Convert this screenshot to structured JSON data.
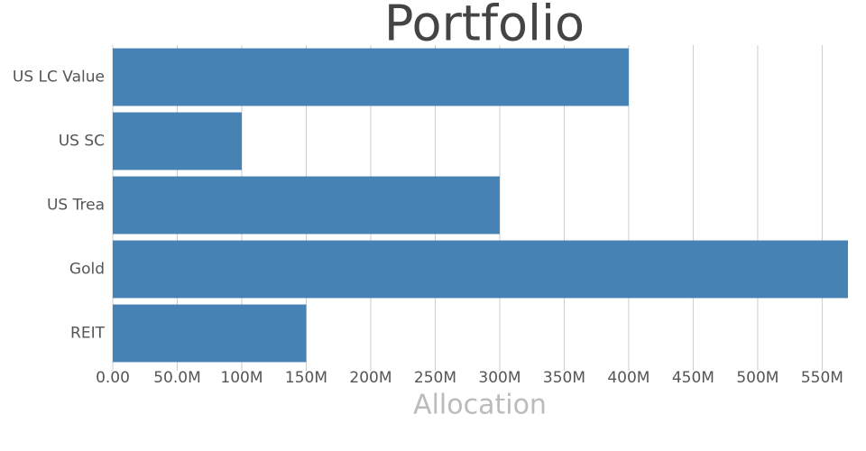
{
  "chart_data": {
    "type": "hbar",
    "title": "Portfolio",
    "x_label": "Allocation",
    "categories": [
      "US LC Value",
      "US SC",
      "US Trea",
      "Gold",
      "REIT"
    ],
    "values": [
      400000000,
      100000000,
      300000000,
      570000000,
      150000000
    ],
    "color": "#4682b4",
    "xlim": [
      0,
      570000000
    ],
    "xticks": [
      {
        "value": 0,
        "label": "0.00"
      },
      {
        "value": 50000000,
        "label": "50.0M"
      },
      {
        "value": 100000000,
        "label": "100M"
      },
      {
        "value": 150000000,
        "label": "150M"
      },
      {
        "value": 200000000,
        "label": "200M"
      },
      {
        "value": 250000000,
        "label": "250M"
      },
      {
        "value": 300000000,
        "label": "300M"
      },
      {
        "value": 350000000,
        "label": "350M"
      },
      {
        "value": 400000000,
        "label": "400M"
      },
      {
        "value": 450000000,
        "label": "450M"
      },
      {
        "value": 500000000,
        "label": "500M"
      },
      {
        "value": 550000000,
        "label": "550M"
      }
    ],
    "grid": true
  }
}
